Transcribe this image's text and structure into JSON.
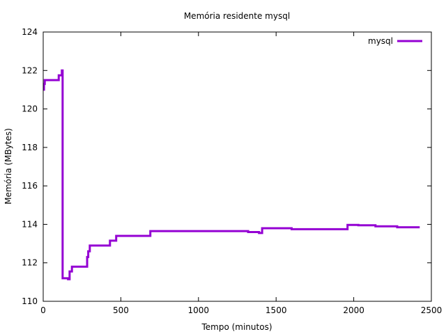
{
  "chart_data": {
    "type": "line",
    "title": "Memória residente mysql",
    "xlabel": "Tempo (minutos)",
    "ylabel": "Memória (MBytes)",
    "xlim": [
      0,
      2500
    ],
    "ylim": [
      110,
      124
    ],
    "xticks": [
      0,
      500,
      1000,
      1500,
      2000,
      2500
    ],
    "yticks": [
      110,
      112,
      114,
      116,
      118,
      120,
      122,
      124
    ],
    "grid": false,
    "legend_position": "top-right",
    "series": [
      {
        "name": "mysql",
        "color": "#9400d3",
        "step": true,
        "x": [
          0,
          5,
          10,
          100,
          110,
          120,
          125,
          130,
          150,
          160,
          170,
          180,
          185,
          250,
          283,
          290,
          300,
          305,
          320,
          340,
          430,
          470,
          500,
          690,
          1000,
          1320,
          1390,
          1410,
          1600,
          1960,
          2030,
          2140,
          2280,
          2425
        ],
        "y": [
          121.0,
          121.3,
          121.5,
          121.75,
          121.75,
          122.0,
          111.2,
          111.2,
          111.2,
          111.15,
          111.55,
          111.55,
          111.8,
          111.8,
          112.3,
          112.6,
          112.9,
          112.9,
          112.9,
          112.9,
          113.15,
          113.4,
          113.4,
          113.65,
          113.65,
          113.6,
          113.55,
          113.8,
          113.75,
          113.97,
          113.95,
          113.9,
          113.85,
          113.85
        ]
      }
    ]
  }
}
